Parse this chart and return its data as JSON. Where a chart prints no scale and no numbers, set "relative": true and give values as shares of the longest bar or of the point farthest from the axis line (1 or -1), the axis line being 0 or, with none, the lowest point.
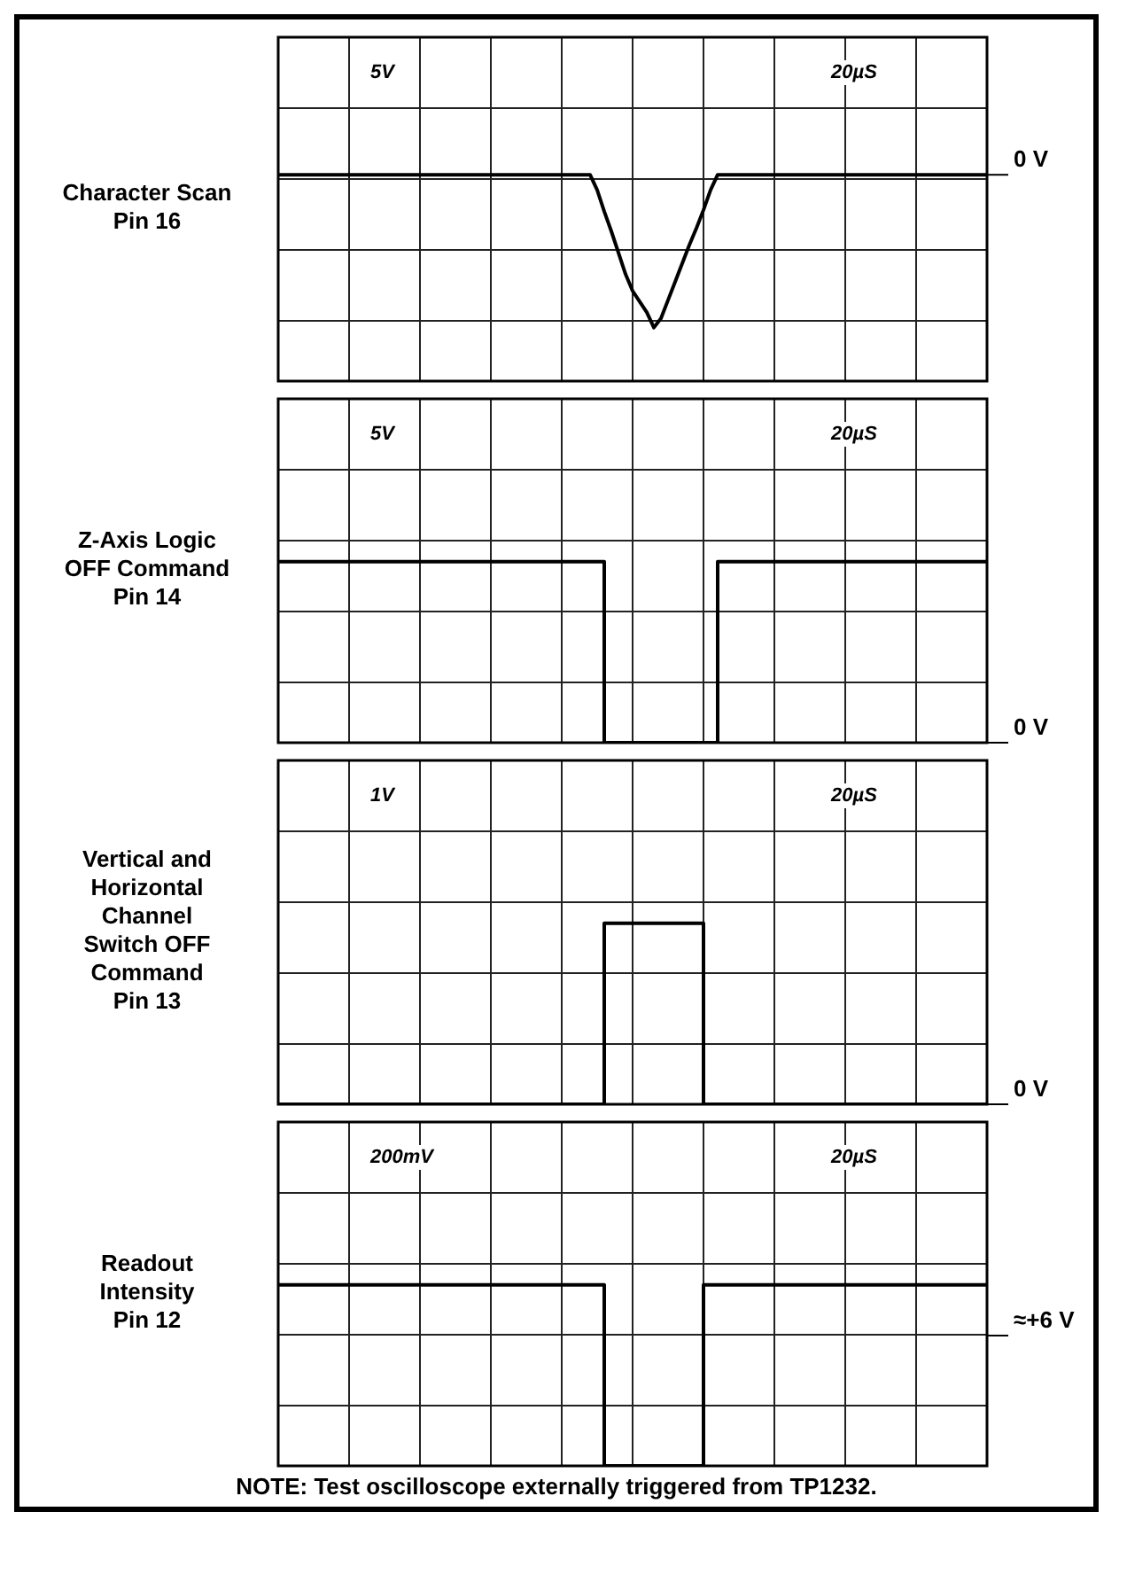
{
  "chart_data": [
    {
      "type": "line",
      "ylabel": "Character Scan\nPin 16",
      "relative": true,
      "grid": true,
      "marker": "none",
      "color": "#000000",
      "annotations": [
        "5V",
        "20µS"
      ],
      "ref_lines": [
        {
          "axis": "y",
          "value": 0,
          "label": "0 V"
        }
      ],
      "categories": [
        null,
        null,
        null,
        null,
        null,
        null,
        null,
        null,
        null,
        null,
        null,
        null,
        null,
        null,
        null,
        null,
        null,
        null,
        null,
        null,
        null,
        null,
        null,
        null,
        null,
        null,
        null,
        null,
        null,
        null,
        null,
        null,
        null,
        null,
        null,
        null,
        null,
        null,
        null,
        null,
        null,
        null,
        null,
        null,
        null,
        null,
        null,
        null,
        null,
        null,
        null,
        null,
        null,
        null,
        null,
        null,
        null,
        null,
        null,
        null,
        null,
        null,
        null,
        null,
        null,
        null,
        null,
        null,
        null,
        null,
        null,
        null,
        null,
        null,
        null,
        null,
        null,
        null,
        null,
        null,
        null,
        null,
        null,
        null,
        null,
        null,
        null,
        null,
        null,
        null,
        null,
        null,
        null,
        null,
        null,
        null,
        null,
        null,
        null,
        null,
        null
      ],
      "values": [
        0,
        0,
        0,
        0,
        0,
        0,
        0,
        0,
        0,
        0,
        0,
        0,
        0,
        0,
        0,
        0,
        0,
        0,
        0,
        0,
        0,
        0,
        0,
        0,
        0,
        0,
        0,
        0,
        0,
        0,
        0,
        0,
        0,
        0,
        0,
        0,
        0,
        0,
        0,
        0,
        0,
        0,
        0,
        0,
        0,
        -0.1,
        -0.24,
        -0.37,
        -0.51,
        -0.65,
        -0.76,
        -0.83,
        -0.9,
        -1,
        -0.94,
        -0.82,
        -0.7,
        -0.58,
        -0.46,
        -0.35,
        -0.23,
        -0.1,
        0,
        0,
        0,
        0,
        0,
        0,
        0,
        0,
        0,
        0,
        0,
        0,
        0,
        0,
        0,
        0,
        0,
        0,
        0,
        0,
        0,
        0,
        0,
        0,
        0,
        0,
        0,
        0,
        0,
        0,
        0,
        0,
        0,
        0,
        0,
        0,
        0,
        0,
        0
      ]
    },
    {
      "type": "step",
      "ylabel": "Z-Axis Logic\nOFF Command\nPin 14",
      "relative": true,
      "grid": true,
      "marker": "none",
      "color": "#000000",
      "annotations": [
        "5V",
        "20µS"
      ],
      "ref_lines": [
        {
          "axis": "y",
          "value": 0,
          "label": "0 V"
        }
      ],
      "categories": [
        null,
        null,
        null,
        null,
        null,
        null,
        null,
        null,
        null,
        null,
        null,
        null,
        null,
        null,
        null,
        null,
        null,
        null,
        null,
        null,
        null,
        null,
        null,
        null,
        null,
        null,
        null,
        null,
        null,
        null,
        null,
        null,
        null,
        null,
        null,
        null,
        null,
        null,
        null,
        null,
        null,
        null,
        null,
        null,
        null,
        null,
        null,
        null,
        null,
        null,
        null,
        null,
        null,
        null,
        null,
        null,
        null,
        null,
        null,
        null,
        null,
        null,
        null,
        null,
        null,
        null,
        null,
        null,
        null,
        null,
        null,
        null,
        null,
        null,
        null,
        null,
        null,
        null,
        null,
        null,
        null,
        null,
        null,
        null,
        null,
        null,
        null,
        null,
        null,
        null,
        null,
        null,
        null,
        null,
        null,
        null,
        null,
        null,
        null,
        null,
        null
      ],
      "values": [
        1,
        1,
        1,
        1,
        1,
        1,
        1,
        1,
        1,
        1,
        1,
        1,
        1,
        1,
        1,
        1,
        1,
        1,
        1,
        1,
        1,
        1,
        1,
        1,
        1,
        1,
        1,
        1,
        1,
        1,
        1,
        1,
        1,
        1,
        1,
        1,
        1,
        1,
        1,
        1,
        1,
        1,
        1,
        1,
        1,
        1,
        0,
        0,
        0,
        0,
        0,
        0,
        0,
        0,
        0,
        0,
        0,
        0,
        0,
        0,
        0,
        0,
        1,
        1,
        1,
        1,
        1,
        1,
        1,
        1,
        1,
        1,
        1,
        1,
        1,
        1,
        1,
        1,
        1,
        1,
        1,
        1,
        1,
        1,
        1,
        1,
        1,
        1,
        1,
        1,
        1,
        1,
        1,
        1,
        1,
        1,
        1,
        1,
        1,
        1,
        1
      ]
    },
    {
      "type": "step",
      "ylabel": "Vertical and\nHorizontal\nChannel\nSwitch OFF\nCommand\nPin 13",
      "relative": true,
      "grid": true,
      "marker": "none",
      "color": "#000000",
      "annotations": [
        "1V",
        "20µS"
      ],
      "ref_lines": [
        {
          "axis": "y",
          "value": 0,
          "label": "0 V"
        }
      ],
      "categories": [
        null,
        null,
        null,
        null,
        null,
        null,
        null,
        null,
        null,
        null,
        null,
        null,
        null,
        null,
        null,
        null,
        null,
        null,
        null,
        null,
        null,
        null,
        null,
        null,
        null,
        null,
        null,
        null,
        null,
        null,
        null,
        null,
        null,
        null,
        null,
        null,
        null,
        null,
        null,
        null,
        null,
        null,
        null,
        null,
        null,
        null,
        null,
        null,
        null,
        null,
        null,
        null,
        null,
        null,
        null,
        null,
        null,
        null,
        null,
        null,
        null,
        null,
        null,
        null,
        null,
        null,
        null,
        null,
        null,
        null,
        null,
        null,
        null,
        null,
        null,
        null,
        null,
        null,
        null,
        null,
        null,
        null,
        null,
        null,
        null,
        null,
        null,
        null,
        null,
        null,
        null,
        null,
        null,
        null,
        null,
        null,
        null,
        null,
        null,
        null,
        null
      ],
      "values": [
        0,
        0,
        0,
        0,
        0,
        0,
        0,
        0,
        0,
        0,
        0,
        0,
        0,
        0,
        0,
        0,
        0,
        0,
        0,
        0,
        0,
        0,
        0,
        0,
        0,
        0,
        0,
        0,
        0,
        0,
        0,
        0,
        0,
        0,
        0,
        0,
        0,
        0,
        0,
        0,
        0,
        0,
        0,
        0,
        0,
        0,
        1,
        1,
        1,
        1,
        1,
        1,
        1,
        1,
        1,
        1,
        1,
        1,
        1,
        1,
        0,
        0,
        0,
        0,
        0,
        0,
        0,
        0,
        0,
        0,
        0,
        0,
        0,
        0,
        0,
        0,
        0,
        0,
        0,
        0,
        0,
        0,
        0,
        0,
        0,
        0,
        0,
        0,
        0,
        0,
        0,
        0,
        0,
        0,
        0,
        0,
        0,
        0,
        0,
        0,
        0
      ]
    },
    {
      "type": "step",
      "ylabel": "Readout\nIntensity\nPin 12",
      "relative": true,
      "grid": true,
      "marker": "none",
      "color": "#000000",
      "annotations": [
        "200mV",
        "20µS",
        "NOTE: Test oscilloscope externally triggered from TP1232."
      ],
      "ref_lines": [
        {
          "axis": "y",
          "value": 0.72,
          "label": "≈+6 V"
        }
      ],
      "categories": [
        null,
        null,
        null,
        null,
        null,
        null,
        null,
        null,
        null,
        null,
        null,
        null,
        null,
        null,
        null,
        null,
        null,
        null,
        null,
        null,
        null,
        null,
        null,
        null,
        null,
        null,
        null,
        null,
        null,
        null,
        null,
        null,
        null,
        null,
        null,
        null,
        null,
        null,
        null,
        null,
        null,
        null,
        null,
        null,
        null,
        null,
        null,
        null,
        null,
        null,
        null,
        null,
        null,
        null,
        null,
        null,
        null,
        null,
        null,
        null,
        null,
        null,
        null,
        null,
        null,
        null,
        null,
        null,
        null,
        null,
        null,
        null,
        null,
        null,
        null,
        null,
        null,
        null,
        null,
        null,
        null,
        null,
        null,
        null,
        null,
        null,
        null,
        null,
        null,
        null,
        null,
        null,
        null,
        null,
        null,
        null,
        null,
        null,
        null,
        null,
        null
      ],
      "values": [
        1,
        1,
        1,
        1,
        1,
        1,
        1,
        1,
        1,
        1,
        1,
        1,
        1,
        1,
        1,
        1,
        1,
        1,
        1,
        1,
        1,
        1,
        1,
        1,
        1,
        1,
        1,
        1,
        1,
        1,
        1,
        1,
        1,
        1,
        1,
        1,
        1,
        1,
        1,
        1,
        1,
        1,
        1,
        1,
        1,
        1,
        0,
        0,
        0,
        0,
        0,
        0,
        0,
        0,
        0,
        0,
        0,
        0,
        0,
        0,
        1,
        1,
        1,
        1,
        1,
        1,
        1,
        1,
        1,
        1,
        1,
        1,
        1,
        1,
        1,
        1,
        1,
        1,
        1,
        1,
        1,
        1,
        1,
        1,
        1,
        1,
        1,
        1,
        1,
        1,
        1,
        1,
        1,
        1,
        1,
        1,
        1,
        1,
        1,
        1,
        1
      ]
    }
  ]
}
